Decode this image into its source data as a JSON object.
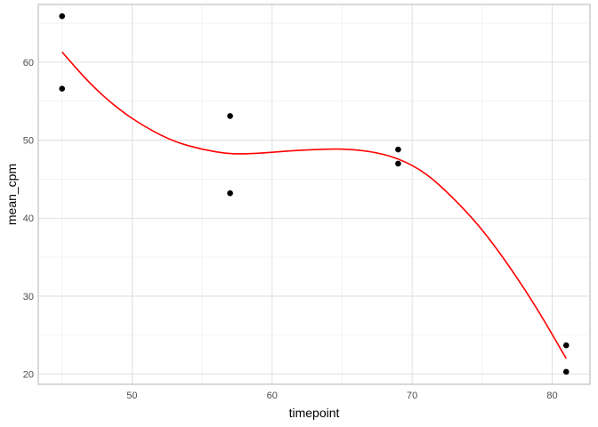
{
  "chart_data": {
    "type": "scatter",
    "xlabel": "timepoint",
    "ylabel": "mean_cpm",
    "xlim": [
      43.3,
      82.7
    ],
    "ylim": [
      18.7,
      67.4
    ],
    "x_ticks": [
      50,
      60,
      70,
      80
    ],
    "y_ticks": [
      20,
      30,
      40,
      50,
      60
    ],
    "x_tick_labels": [
      "50",
      "60",
      "70",
      "80"
    ],
    "y_tick_labels": [
      "20",
      "30",
      "40",
      "50",
      "60"
    ],
    "grid": true,
    "points": [
      {
        "x": 45,
        "y": 65.9
      },
      {
        "x": 45,
        "y": 56.6
      },
      {
        "x": 57,
        "y": 53.1
      },
      {
        "x": 57,
        "y": 43.2
      },
      {
        "x": 69,
        "y": 48.8
      },
      {
        "x": 69,
        "y": 47.0
      },
      {
        "x": 81,
        "y": 23.7
      },
      {
        "x": 81,
        "y": 20.3
      }
    ],
    "smooth_curve": {
      "color": "#ff0000",
      "x": [
        45,
        47,
        49,
        51,
        53,
        55,
        57,
        59,
        61,
        63,
        65,
        67,
        69,
        71,
        73,
        75,
        77,
        79,
        81
      ],
      "y": [
        61.3,
        57.2,
        54.0,
        51.6,
        49.8,
        48.8,
        48.2,
        48.3,
        48.6,
        48.8,
        48.9,
        48.6,
        47.7,
        45.8,
        42.5,
        38.6,
        33.7,
        28.2,
        22.0
      ]
    },
    "point_color": "#000000",
    "panel_background": "#ffffff",
    "grid_major_color": "#d9d9d9",
    "grid_minor_color": "#ebebeb",
    "border_color": "#b3b3b3"
  }
}
